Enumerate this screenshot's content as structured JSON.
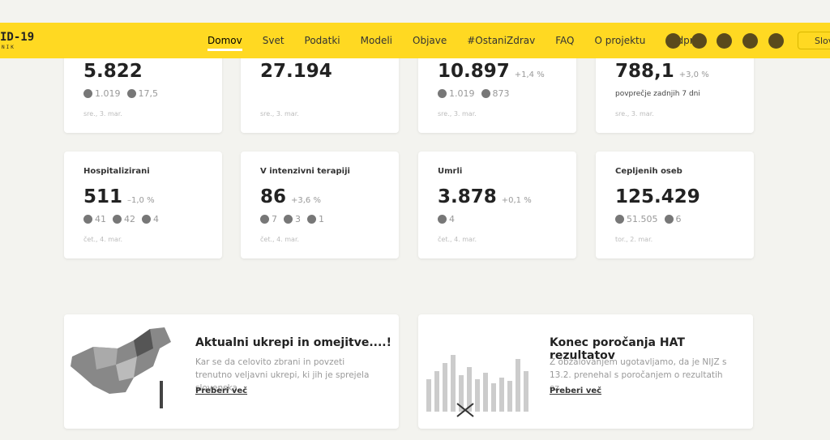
{
  "header": {
    "logo": "ID-19",
    "logo_sub": "NIK",
    "language": "Slov",
    "nav": [
      "Domov",
      "Svet",
      "Podatki",
      "Modeli",
      "Objave",
      "#OstaniZdrav",
      "FAQ",
      "O projektu",
      "Podpri!"
    ]
  },
  "cards": [
    {
      "value": "5.822",
      "subs": [
        "1.019",
        "17,5"
      ],
      "date": "sre., 3. mar."
    },
    {
      "value": "27.194",
      "subs": [],
      "date": "sre., 3. mar."
    },
    {
      "value": "10.897",
      "change": "+1,4 %",
      "subs": [
        "1.019",
        "873"
      ],
      "date": "sre., 3. mar."
    },
    {
      "value": "788,1",
      "change": "+3,0 %",
      "note": "povprečje zadnjih 7 dni",
      "subs": [],
      "date": "sre., 3. mar."
    },
    {
      "title": "Hospitalizirani",
      "value": "511",
      "change": "–1,0 %",
      "subs": [
        "41",
        "42",
        "4"
      ],
      "date": "čet., 4. mar."
    },
    {
      "title": "V intenzivni terapiji",
      "value": "86",
      "change": "+3,6 %",
      "subs": [
        "7",
        "3",
        "1"
      ],
      "date": "čet., 4. mar."
    },
    {
      "title": "Umrli",
      "value": "3.878",
      "change": "+0,1 %",
      "subs": [
        "4"
      ],
      "date": "čet., 4. mar."
    },
    {
      "title": "Cepljenih oseb",
      "value": "125.429",
      "subs": [
        "51.505",
        "6"
      ],
      "date": "tor., 2. mar."
    }
  ],
  "posts": [
    {
      "title": "Aktualni ukrepi in omejitve....!",
      "text": "Kar se da celovito zbrani in povzeti trenutno veljavni ukrepi, ki jih je sprejela slovenska...",
      "link": "Preberi več"
    },
    {
      "title": "Konec poročanja HAT rezultatov",
      "text": "Z obžalovanjem ugotavljamo, da je NIJZ s 13.2. prenehal s poročanjem o rezultatih oz...",
      "link": "Preberi več"
    }
  ]
}
